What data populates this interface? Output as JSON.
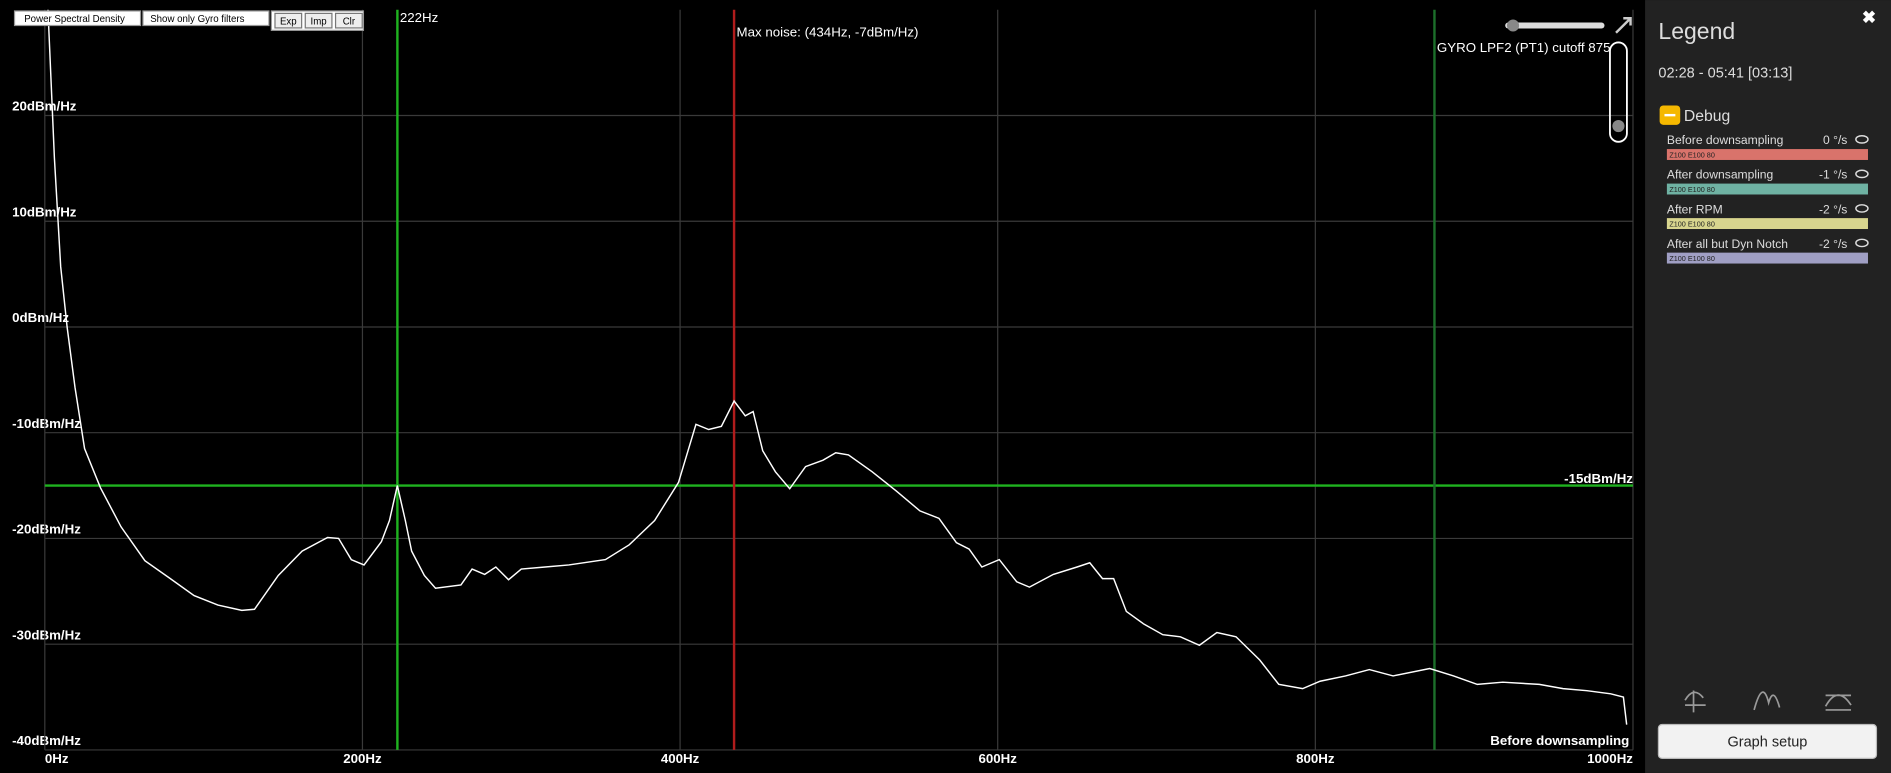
{
  "toolbar": {
    "chart_select": "Power Spectral Density",
    "filter_select": "Show only Gyro filters",
    "buttons": [
      "Exp",
      "Imp",
      "Clr"
    ]
  },
  "chart_data": {
    "type": "line",
    "x": [
      2,
      6,
      10,
      14,
      19,
      25,
      35,
      48,
      63,
      79,
      94,
      109,
      124,
      132,
      147,
      162,
      178,
      185,
      193,
      201,
      212,
      217,
      222,
      227,
      231,
      239,
      246,
      262,
      269,
      277,
      284,
      292,
      300,
      315,
      330,
      353,
      368,
      384,
      399,
      410,
      418,
      426,
      434,
      441,
      446,
      452,
      460,
      469,
      479,
      490,
      498,
      506,
      521,
      536,
      551,
      563,
      574,
      582,
      590,
      601,
      612,
      620,
      635,
      650,
      658,
      666,
      673,
      681,
      692,
      704,
      715,
      727,
      738,
      750,
      765,
      777,
      792,
      803,
      819,
      834,
      849,
      872,
      887,
      902,
      918,
      941,
      956,
      971,
      986,
      994,
      996
    ],
    "series": [
      {
        "name": "Before downsampling",
        "color": "#ffffff",
        "values": [
          30,
          16,
          5.7,
          0,
          -5.7,
          -11.5,
          -15.2,
          -18.9,
          -22.1,
          -23.8,
          -25.4,
          -26.3,
          -26.8,
          -26.7,
          -23.5,
          -21.2,
          -19.9,
          -20,
          -22,
          -22.5,
          -20.3,
          -18.3,
          -15,
          -18.3,
          -21.2,
          -23.5,
          -24.7,
          -24.4,
          -22.9,
          -23.4,
          -22.7,
          -23.9,
          -22.9,
          -22.7,
          -22.5,
          -22,
          -20.6,
          -18.3,
          -14.7,
          -9.2,
          -9.7,
          -9.4,
          -7,
          -8.4,
          -8,
          -11.7,
          -13.7,
          -15.3,
          -13.2,
          -12.6,
          -11.9,
          -12.1,
          -13.7,
          -15.5,
          -17.4,
          -18.1,
          -20.4,
          -21,
          -22.7,
          -22,
          -24.1,
          -24.6,
          -23.4,
          -22.7,
          -22.3,
          -23.8,
          -23.8,
          -26.9,
          -28.1,
          -29.1,
          -29.3,
          -30.1,
          -28.9,
          -29.3,
          -31.5,
          -33.8,
          -34.2,
          -33.5,
          -33,
          -32.4,
          -33,
          -32.3,
          -33,
          -33.8,
          -33.6,
          -33.8,
          -34.2,
          -34.4,
          -34.7,
          -35,
          -37.6
        ]
      }
    ],
    "xlim": [
      0,
      1000
    ],
    "ylim": [
      -40,
      30
    ],
    "xticks": [
      {
        "value": 0,
        "label": "0Hz"
      },
      {
        "value": 200,
        "label": "200Hz"
      },
      {
        "value": 400,
        "label": "400Hz"
      },
      {
        "value": 600,
        "label": "600Hz"
      },
      {
        "value": 800,
        "label": "800Hz"
      },
      {
        "value": 1000,
        "label": "1000Hz"
      }
    ],
    "yticks": [
      {
        "value": 20,
        "label": "20dBm/Hz"
      },
      {
        "value": 10,
        "label": "10dBm/Hz"
      },
      {
        "value": 0,
        "label": "0dBm/Hz"
      },
      {
        "value": -10,
        "label": "-10dBm/Hz"
      },
      {
        "value": -20,
        "label": "-20dBm/Hz"
      },
      {
        "value": -30,
        "label": "-30dBm/Hz"
      },
      {
        "value": -40,
        "label": "-40dBm/Hz"
      }
    ],
    "grid": true,
    "vmarkers": [
      {
        "x": 222,
        "label": "222Hz",
        "color": "#1fb21f"
      },
      {
        "x": 434,
        "label": "Max noise: (434Hz, -7dBm/Hz)",
        "color": "#b01c1c"
      },
      {
        "x": 875,
        "label": "GYRO LPF2 (PT1) cutoff 875",
        "color": "#1c6e2a"
      }
    ],
    "hmarkers": [
      {
        "y": -15,
        "label": "-15dBm/Hz",
        "color": "#1fb21f"
      }
    ]
  },
  "legend": {
    "title": "Legend",
    "time_range": "02:28 - 05:41 [03:13]",
    "group": "Debug",
    "items": [
      {
        "name": "Before downsampling",
        "value": "0 °/s",
        "tag": "Z100 E100 80",
        "color": "#d9736b"
      },
      {
        "name": "After downsampling",
        "value": "-1 °/s",
        "tag": "Z100 E100 80",
        "color": "#6fb2a3"
      },
      {
        "name": "After RPM",
        "value": "-2 °/s",
        "tag": "Z100 E100 80",
        "color": "#d8d58e"
      },
      {
        "name": "After all but Dyn Notch",
        "value": "-2 °/s",
        "tag": "Z100 E100 80",
        "color": "#a09fc4"
      }
    ],
    "button": "Graph setup"
  }
}
